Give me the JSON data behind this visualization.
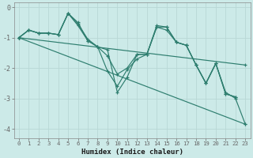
{
  "xlabel": "Humidex (Indice chaleur)",
  "bg_color": "#cceae8",
  "line_color": "#2d7d6e",
  "grid_color": "#b8d8d6",
  "xlim": [
    -0.5,
    23.5
  ],
  "ylim": [
    -4.3,
    0.15
  ],
  "yticks": [
    0,
    -1,
    -2,
    -3,
    -4
  ],
  "xticks": [
    0,
    1,
    2,
    3,
    4,
    5,
    6,
    7,
    8,
    9,
    10,
    11,
    12,
    13,
    14,
    15,
    16,
    17,
    18,
    19,
    20,
    21,
    22,
    23
  ],
  "series": [
    {
      "x": [
        0,
        1,
        2,
        3,
        4,
        5,
        6,
        7,
        8,
        9,
        10,
        11,
        12,
        13,
        14,
        15,
        16,
        17,
        18,
        19,
        20,
        21,
        22
      ],
      "y": [
        -1.0,
        -0.75,
        -0.85,
        -0.85,
        -0.9,
        -0.2,
        -0.6,
        -1.1,
        -1.3,
        -1.4,
        -2.8,
        -2.3,
        -1.55,
        -1.55,
        -0.6,
        -0.65,
        -1.15,
        -1.25,
        -1.9,
        -2.5,
        -1.85,
        -2.85,
        -2.95
      ]
    },
    {
      "x": [
        0,
        1,
        2,
        3,
        4,
        5,
        6,
        7,
        8,
        9,
        10,
        11,
        12,
        13,
        14,
        15,
        16,
        17,
        18,
        19,
        20,
        21,
        22
      ],
      "y": [
        -1.0,
        -0.75,
        -0.85,
        -0.85,
        -0.9,
        -0.2,
        -0.55,
        -1.05,
        -1.3,
        -1.6,
        -2.2,
        -2.0,
        -1.55,
        -1.55,
        -0.65,
        -0.75,
        -1.15,
        -1.25,
        -1.9,
        -2.5,
        -1.85,
        -2.85,
        -2.95
      ]
    },
    {
      "x": [
        0,
        23
      ],
      "y": [
        -1.0,
        -1.9
      ]
    },
    {
      "x": [
        0,
        23
      ],
      "y": [
        -1.0,
        -3.85
      ]
    },
    {
      "x": [
        0,
        1,
        2,
        3,
        4,
        5,
        6,
        7,
        8,
        9,
        10,
        11,
        12,
        13,
        14,
        15,
        16,
        17,
        18,
        19,
        20,
        21,
        22,
        23
      ],
      "y": [
        -1.0,
        -0.75,
        -0.85,
        -0.85,
        -0.9,
        -0.2,
        -0.5,
        -1.1,
        -1.3,
        -2.1,
        -2.6,
        -2.05,
        -1.7,
        -1.55,
        -0.65,
        -0.65,
        -1.15,
        -1.25,
        -1.9,
        -2.5,
        -1.85,
        -2.8,
        -3.0,
        -3.85
      ]
    }
  ]
}
